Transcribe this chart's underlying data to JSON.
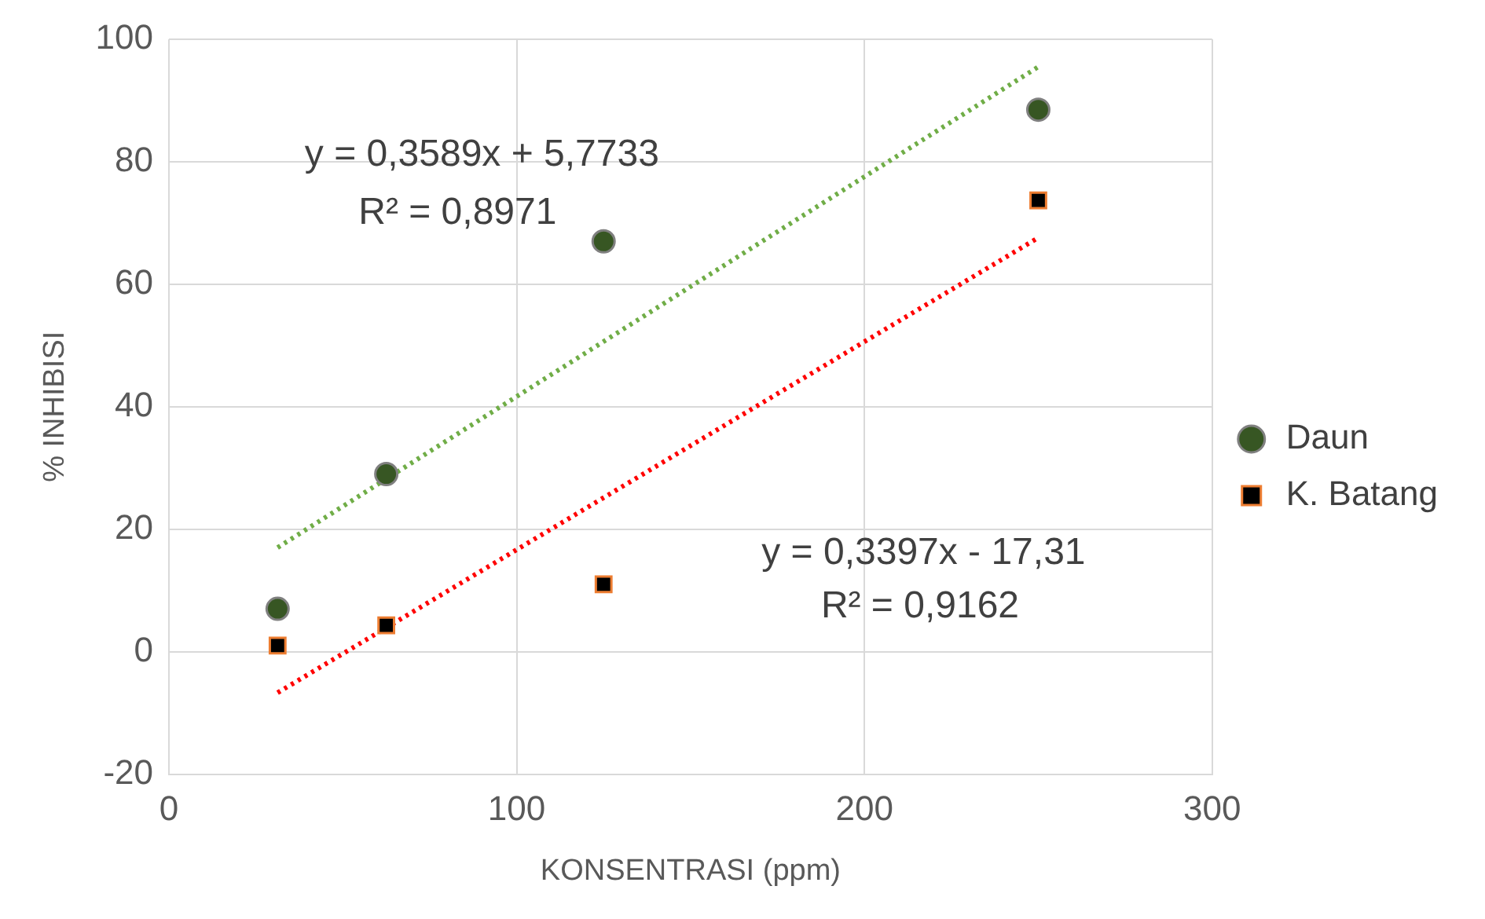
{
  "chart_data": {
    "type": "scatter",
    "xlabel": "KONSENTRASI (ppm)",
    "ylabel": "% INHIBISI",
    "xlim": [
      0,
      300
    ],
    "xticks": [
      0,
      100,
      200,
      300
    ],
    "ylim": [
      -20,
      100
    ],
    "yticks": [
      -20,
      0,
      20,
      40,
      60,
      80,
      100
    ],
    "grid": true,
    "legend": "right",
    "series": [
      {
        "name": "Daun",
        "type": "scatter",
        "marker": "circle",
        "color": "#375623",
        "x": [
          31.25,
          62.5,
          125,
          250
        ],
        "values": [
          7,
          29,
          67,
          88.5
        ]
      },
      {
        "name": "K. Batang",
        "type": "scatter",
        "marker": "square",
        "color": "#000000",
        "x": [
          31.25,
          62.5,
          125,
          250
        ],
        "values": [
          1,
          4.3,
          11,
          73.7
        ]
      },
      {
        "type": "line",
        "line_style": "dotted",
        "marker": "none",
        "color": "#70ad47",
        "x": [
          31.25,
          250
        ],
        "values": [
          17,
          95.5
        ]
      },
      {
        "type": "line",
        "line_style": "dotted",
        "marker": "none",
        "color": "#ff0000",
        "x": [
          31.25,
          250
        ],
        "values": [
          -6.7,
          67.6
        ]
      }
    ],
    "annotations": [
      "y = 0,3589x + 5,7733",
      "R² = 0,8971",
      "y = 0,3397x - 17,31",
      "R² = 0,9162"
    ]
  }
}
